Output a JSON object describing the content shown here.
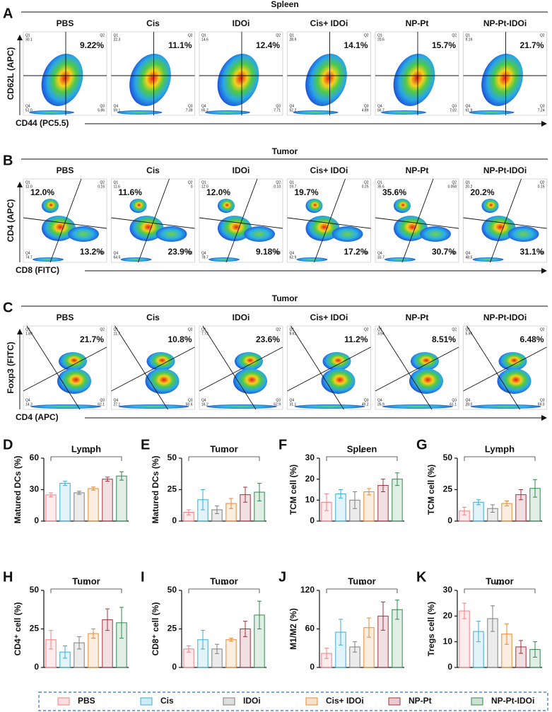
{
  "groups": [
    "PBS",
    "Cis",
    "IDOi",
    "Cis+ IDOi",
    "NP-Pt",
    "NP-Pt-IDOi"
  ],
  "quadrant_names": [
    "Q1",
    "Q2",
    "Q3",
    "Q4"
  ],
  "flow_panels": [
    {
      "letter": "A",
      "title": "Spleen",
      "y_label": "CD62L (APC)",
      "x_label": "CD44 (PC5.5)",
      "gate": "cross",
      "plots": [
        {
          "upper": "9.22%",
          "lower": null,
          "q_values": [
            "30.1",
            null,
            "5.86",
            "51.0"
          ]
        },
        {
          "upper": "11.1%",
          "lower": null,
          "q_values": [
            "22.3",
            null,
            "7.39",
            "59.1"
          ]
        },
        {
          "upper": "12.4%",
          "lower": null,
          "q_values": [
            "14.6",
            null,
            "7.71",
            "65.2"
          ]
        },
        {
          "upper": "14.1%",
          "lower": null,
          "q_values": [
            "28.9",
            null,
            "4.89",
            "52.2"
          ]
        },
        {
          "upper": "15.7%",
          "lower": null,
          "q_values": [
            "20.6",
            null,
            "7.02",
            "56.7"
          ]
        },
        {
          "upper": "21.7%",
          "lower": null,
          "q_values": [
            "9.19",
            null,
            "7.24",
            "61.9"
          ]
        }
      ]
    },
    {
      "letter": "B",
      "title": "Tumor",
      "y_label": "CD4 (APC)",
      "x_label": "CD8 (FITC)",
      "gate": "tilted",
      "plots": [
        {
          "upper": "12.0%",
          "lower": "13.2%",
          "q_values": [
            "12.0",
            "0.16",
            null,
            "74.7"
          ]
        },
        {
          "upper": "11.6%",
          "lower": "23.9%",
          "q_values": [
            "11.6",
            "0",
            null,
            "64.5"
          ]
        },
        {
          "upper": "12.0%",
          "lower": "9.18%",
          "q_values": [
            "12.0",
            "0.10",
            null,
            "78.7"
          ]
        },
        {
          "upper": "19.7%",
          "lower": "17.2%",
          "q_values": [
            "19.7",
            "0.25",
            null,
            "62.9"
          ]
        },
        {
          "upper": "35.6%",
          "lower": "30.7%",
          "q_values": [
            "35.6",
            "0.058",
            null,
            "33.7"
          ]
        },
        {
          "upper": "20.2%",
          "lower": "31.1%",
          "q_values": [
            "20.2",
            "0.15",
            null,
            "48.5"
          ]
        }
      ]
    },
    {
      "letter": "C",
      "title": "Tumor",
      "y_label": "Foxp3 (FITC)",
      "x_label": "CD4 (APC)",
      "gate": "diagonal",
      "plots": [
        {
          "upper": "21.7%",
          "lower": null,
          "q_values": [
            "1.89",
            null,
            "62.1",
            "14.3"
          ]
        },
        {
          "upper": "10.8%",
          "lower": null,
          "q_values": [
            "11.7",
            null,
            "50.6",
            "27.1"
          ]
        },
        {
          "upper": "23.6%",
          "lower": null,
          "q_values": [
            "7.73",
            null,
            "52.9",
            "16.2"
          ]
        },
        {
          "upper": "11.2%",
          "lower": null,
          "q_values": [
            "8.61",
            null,
            "49.2",
            "31.1"
          ]
        },
        {
          "upper": "8.51%",
          "lower": null,
          "q_values": [
            "3.54",
            null,
            "61.1",
            "26.9"
          ]
        },
        {
          "upper": "6.48%",
          "lower": null,
          "q_values": [
            "5.96",
            null,
            "59.0",
            "28.0"
          ]
        }
      ]
    }
  ],
  "chart_data": [
    {
      "type": "bar",
      "letter": "D",
      "title": "Lymph",
      "y_label": "Matured DCs (%)",
      "values": [
        25,
        36,
        27,
        31,
        40,
        43
      ],
      "errors": [
        2,
        2,
        1.5,
        1.5,
        2,
        4
      ],
      "ylim": [
        0,
        60
      ],
      "yticks": [
        0,
        30,
        60
      ],
      "annotation": "***"
    },
    {
      "type": "bar",
      "letter": "E",
      "title": "Tumor",
      "y_label": "Matured DCs (%)",
      "values": [
        7,
        17,
        9,
        14,
        21,
        23
      ],
      "errors": [
        2,
        8,
        3,
        4,
        6,
        7
      ],
      "ylim": [
        0,
        50
      ],
      "yticks": [
        0,
        25,
        50
      ],
      "annotation": "*"
    },
    {
      "type": "bar",
      "letter": "F",
      "title": "Spleen",
      "y_label": "TCM cell (%)",
      "values": [
        9,
        13,
        10,
        14,
        17,
        20
      ],
      "errors": [
        4,
        2,
        4,
        1.5,
        3,
        3
      ],
      "ylim": [
        0,
        30
      ],
      "yticks": [
        0,
        10,
        20,
        30
      ],
      "annotation": "*"
    },
    {
      "type": "bar",
      "letter": "G",
      "title": "Lymph",
      "y_label": "TCM cell (%)",
      "values": [
        8,
        15,
        10,
        14,
        21,
        26
      ],
      "errors": [
        3,
        2,
        3,
        2,
        4,
        7
      ],
      "ylim": [
        0,
        50
      ],
      "yticks": [
        0,
        25,
        50
      ],
      "annotation": "*"
    },
    {
      "type": "bar",
      "letter": "H",
      "title": "Tumor",
      "y_label": "CD4⁺ cell (%)",
      "values": [
        18,
        10,
        16,
        22,
        31,
        29
      ],
      "errors": [
        6,
        4,
        4,
        3,
        7,
        10
      ],
      "ylim": [
        0,
        50
      ],
      "yticks": [
        0,
        25,
        50
      ],
      "annotation": "*"
    },
    {
      "type": "bar",
      "letter": "I",
      "title": "Tumor",
      "y_label": "CD8⁺ cell (%)",
      "values": [
        12,
        18,
        12,
        18,
        25,
        34
      ],
      "errors": [
        2,
        6,
        3,
        1,
        5,
        9
      ],
      "ylim": [
        0,
        50
      ],
      "yticks": [
        0,
        25,
        50
      ],
      "annotation": "**"
    },
    {
      "type": "bar",
      "letter": "J",
      "title": "Tumor",
      "y_label": "M1/M2 (%)",
      "values": [
        22,
        55,
        32,
        62,
        80,
        90
      ],
      "errors": [
        8,
        20,
        8,
        15,
        22,
        15
      ],
      "ylim": [
        0,
        120
      ],
      "yticks": [
        0,
        60,
        120
      ],
      "annotation": "**"
    },
    {
      "type": "bar",
      "letter": "K",
      "title": "Tumor",
      "y_label": "Tregs cell (%)",
      "values": [
        22,
        14,
        19,
        13,
        8,
        7
      ],
      "errors": [
        3,
        4,
        5,
        4,
        2.5,
        3
      ],
      "ylim": [
        0,
        30
      ],
      "yticks": [
        0,
        10,
        20,
        30
      ],
      "annotation": "***"
    }
  ],
  "legend": {
    "items": [
      {
        "name": "PBS",
        "color": "#f07f85"
      },
      {
        "name": "Cis",
        "color": "#3aaed8"
      },
      {
        "name": "IDOi",
        "color": "#7f7f7f"
      },
      {
        "name": "Cis+ IDOi",
        "color": "#e58a2e"
      },
      {
        "name": "NP-Pt",
        "color": "#a3303e"
      },
      {
        "name": "NP-Pt-IDOi",
        "color": "#2f8a4e"
      }
    ]
  }
}
